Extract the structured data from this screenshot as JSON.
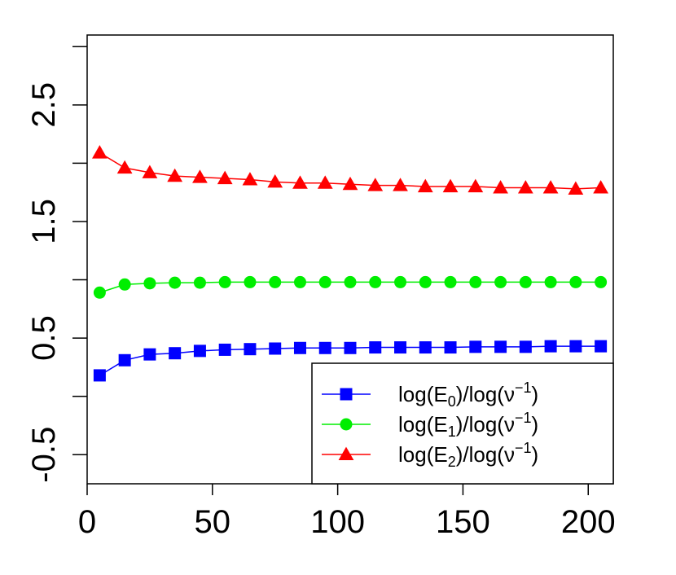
{
  "chart_data": {
    "type": "line",
    "title": "",
    "xlabel": "",
    "ylabel": "",
    "xlim": [
      0,
      210
    ],
    "ylim": [
      -0.75,
      3.1
    ],
    "x_ticks": [
      0,
      50,
      100,
      150,
      200
    ],
    "x_tick_labels": [
      "0",
      "50",
      "100",
      "150",
      "200"
    ],
    "y_ticks": [
      -0.5,
      0,
      0.5,
      1,
      1.5,
      2,
      2.5,
      3
    ],
    "y_tick_labels": [
      "-0.5",
      "",
      "0.5",
      "",
      "1.5",
      "",
      "2.5",
      ""
    ],
    "x": [
      5,
      15,
      25,
      35,
      45,
      55,
      65,
      75,
      85,
      95,
      105,
      115,
      125,
      135,
      145,
      155,
      165,
      175,
      185,
      195,
      205
    ],
    "series": [
      {
        "name": "log(E0)/log(ν−1)",
        "label_parts": {
          "pre": "log(E",
          "sub": "0",
          "mid": ")/log(ν",
          "sup": "−1",
          "post": ")"
        },
        "color": "#0000ff",
        "marker": "square",
        "values": [
          0.18,
          0.31,
          0.36,
          0.37,
          0.39,
          0.4,
          0.405,
          0.41,
          0.415,
          0.415,
          0.415,
          0.42,
          0.42,
          0.42,
          0.42,
          0.425,
          0.425,
          0.425,
          0.43,
          0.43,
          0.43
        ]
      },
      {
        "name": "log(E1)/log(ν−1)",
        "label_parts": {
          "pre": "log(E",
          "sub": "1",
          "mid": ")/log(ν",
          "sup": "−1",
          "post": ")"
        },
        "color": "#00ee00",
        "marker": "circle",
        "values": [
          0.89,
          0.96,
          0.97,
          0.975,
          0.975,
          0.98,
          0.98,
          0.98,
          0.98,
          0.98,
          0.98,
          0.98,
          0.98,
          0.98,
          0.98,
          0.98,
          0.98,
          0.98,
          0.98,
          0.98,
          0.98
        ]
      },
      {
        "name": "log(E2)/log(ν−1)",
        "label_parts": {
          "pre": "log(E",
          "sub": "2",
          "mid": ")/log(ν",
          "sup": "−1",
          "post": ")"
        },
        "color": "#ff0000",
        "marker": "triangle",
        "values": [
          2.09,
          1.96,
          1.92,
          1.89,
          1.88,
          1.87,
          1.86,
          1.84,
          1.83,
          1.83,
          1.82,
          1.81,
          1.81,
          1.8,
          1.8,
          1.8,
          1.79,
          1.79,
          1.79,
          1.78,
          1.79
        ]
      }
    ],
    "legend_position": "bottom-right",
    "grid": false
  }
}
